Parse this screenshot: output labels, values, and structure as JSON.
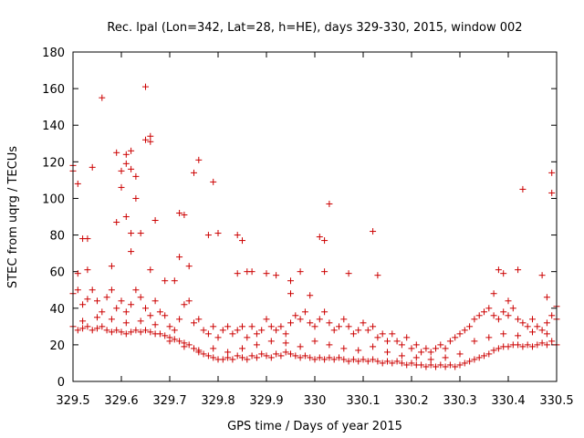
{
  "chart_data": {
    "type": "scatter",
    "title": "Rec. lpal (Lon=342, Lat=28, h=HE), days 329-330, 2015, window 002",
    "xlabel": "GPS time / Days of year 2015",
    "ylabel": "STEC from uqrg / TECUs",
    "xlim": [
      329.5,
      330.5
    ],
    "ylim": [
      0,
      180
    ],
    "grid": false,
    "marker": "plus",
    "color": "#cc0000",
    "x_ticks": [
      329.5,
      329.6,
      329.7,
      329.8,
      329.9,
      330.0,
      330.1,
      330.2,
      330.3,
      330.4,
      330.5
    ],
    "x_tick_labels": [
      "329.5",
      "329.6",
      "329.7",
      "329.8",
      "329.9",
      "330",
      "330.1",
      "330.2",
      "330.3",
      "330.4",
      "330.5"
    ],
    "y_ticks": [
      0,
      20,
      40,
      60,
      80,
      100,
      120,
      140,
      160,
      180
    ],
    "y_tick_labels": [
      "0",
      "20",
      "40",
      "60",
      "80",
      "100",
      "120",
      "140",
      "160",
      "180"
    ],
    "points": [
      [
        329.5,
        115
      ],
      [
        329.5,
        118
      ],
      [
        329.51,
        108
      ],
      [
        329.52,
        78
      ],
      [
        329.53,
        78
      ],
      [
        329.53,
        61
      ],
      [
        329.51,
        59
      ],
      [
        329.54,
        117
      ],
      [
        329.56,
        155
      ],
      [
        329.58,
        63
      ],
      [
        329.59,
        87
      ],
      [
        329.59,
        125
      ],
      [
        329.6,
        106
      ],
      [
        329.6,
        115
      ],
      [
        329.61,
        119
      ],
      [
        329.61,
        124
      ],
      [
        329.62,
        116
      ],
      [
        329.62,
        126
      ],
      [
        329.63,
        112
      ],
      [
        329.63,
        100
      ],
      [
        329.64,
        81
      ],
      [
        329.61,
        90
      ],
      [
        329.62,
        81
      ],
      [
        329.62,
        71
      ],
      [
        329.65,
        161
      ],
      [
        329.65,
        132
      ],
      [
        329.66,
        131
      ],
      [
        329.66,
        134
      ],
      [
        329.67,
        88
      ],
      [
        329.66,
        61
      ],
      [
        329.69,
        55
      ],
      [
        329.71,
        55
      ],
      [
        329.72,
        68
      ],
      [
        329.72,
        92
      ],
      [
        329.73,
        91
      ],
      [
        329.74,
        63
      ],
      [
        329.75,
        114
      ],
      [
        329.76,
        121
      ],
      [
        329.78,
        80
      ],
      [
        329.79,
        109
      ],
      [
        329.8,
        81
      ],
      [
        329.84,
        80
      ],
      [
        329.85,
        77
      ],
      [
        329.84,
        59
      ],
      [
        329.86,
        60
      ],
      [
        329.87,
        60
      ],
      [
        329.9,
        59
      ],
      [
        329.92,
        58
      ],
      [
        329.95,
        55
      ],
      [
        329.95,
        48
      ],
      [
        329.97,
        60
      ],
      [
        329.99,
        47
      ],
      [
        330.01,
        79
      ],
      [
        330.02,
        77
      ],
      [
        330.03,
        97
      ],
      [
        330.02,
        60
      ],
      [
        330.07,
        59
      ],
      [
        330.12,
        82
      ],
      [
        330.13,
        58
      ],
      [
        330.37,
        48
      ],
      [
        330.38,
        61
      ],
      [
        330.39,
        59
      ],
      [
        330.4,
        44
      ],
      [
        330.42,
        61
      ],
      [
        330.43,
        105
      ],
      [
        330.47,
        58
      ],
      [
        330.49,
        114
      ],
      [
        330.49,
        103
      ],
      [
        330.48,
        46
      ],
      [
        330.5,
        41
      ],
      [
        329.5,
        48
      ],
      [
        329.51,
        50
      ],
      [
        329.52,
        42
      ],
      [
        329.53,
        45
      ],
      [
        329.54,
        50
      ],
      [
        329.55,
        44
      ],
      [
        329.56,
        38
      ],
      [
        329.57,
        46
      ],
      [
        329.58,
        50
      ],
      [
        329.59,
        40
      ],
      [
        329.6,
        44
      ],
      [
        329.61,
        38
      ],
      [
        329.62,
        42
      ],
      [
        329.63,
        50
      ],
      [
        329.64,
        46
      ],
      [
        329.65,
        40
      ],
      [
        329.66,
        36
      ],
      [
        329.67,
        44
      ],
      [
        329.68,
        38
      ],
      [
        329.69,
        36
      ],
      [
        329.7,
        30
      ],
      [
        329.71,
        28
      ],
      [
        329.72,
        34
      ],
      [
        329.73,
        42
      ],
      [
        329.74,
        44
      ],
      [
        329.75,
        32
      ],
      [
        329.76,
        34
      ],
      [
        329.77,
        28
      ],
      [
        329.78,
        26
      ],
      [
        329.79,
        30
      ],
      [
        329.8,
        24
      ],
      [
        329.81,
        28
      ],
      [
        329.82,
        30
      ],
      [
        329.83,
        26
      ],
      [
        329.84,
        28
      ],
      [
        329.85,
        30
      ],
      [
        329.86,
        24
      ],
      [
        329.87,
        30
      ],
      [
        329.88,
        26
      ],
      [
        329.89,
        28
      ],
      [
        329.9,
        34
      ],
      [
        329.91,
        30
      ],
      [
        329.92,
        28
      ],
      [
        329.93,
        30
      ],
      [
        329.94,
        26
      ],
      [
        329.95,
        32
      ],
      [
        329.96,
        36
      ],
      [
        329.97,
        34
      ],
      [
        329.98,
        38
      ],
      [
        329.99,
        32
      ],
      [
        330.0,
        30
      ],
      [
        330.01,
        34
      ],
      [
        330.02,
        38
      ],
      [
        330.03,
        32
      ],
      [
        330.04,
        28
      ],
      [
        330.05,
        30
      ],
      [
        330.06,
        34
      ],
      [
        330.07,
        30
      ],
      [
        330.08,
        26
      ],
      [
        330.09,
        28
      ],
      [
        330.1,
        32
      ],
      [
        330.11,
        28
      ],
      [
        330.12,
        30
      ],
      [
        330.13,
        24
      ],
      [
        330.14,
        26
      ],
      [
        330.15,
        22
      ],
      [
        330.16,
        26
      ],
      [
        330.17,
        22
      ],
      [
        330.18,
        20
      ],
      [
        330.19,
        24
      ],
      [
        330.2,
        18
      ],
      [
        330.21,
        20
      ],
      [
        330.22,
        16
      ],
      [
        330.23,
        18
      ],
      [
        330.24,
        16
      ],
      [
        330.25,
        18
      ],
      [
        330.26,
        20
      ],
      [
        330.27,
        18
      ],
      [
        330.28,
        22
      ],
      [
        330.29,
        24
      ],
      [
        330.3,
        26
      ],
      [
        330.31,
        28
      ],
      [
        330.32,
        30
      ],
      [
        330.33,
        34
      ],
      [
        330.34,
        36
      ],
      [
        330.35,
        38
      ],
      [
        330.36,
        40
      ],
      [
        330.37,
        36
      ],
      [
        330.38,
        34
      ],
      [
        330.39,
        38
      ],
      [
        330.4,
        36
      ],
      [
        330.41,
        40
      ],
      [
        330.42,
        34
      ],
      [
        330.43,
        32
      ],
      [
        330.44,
        30
      ],
      [
        330.45,
        34
      ],
      [
        330.46,
        30
      ],
      [
        330.47,
        28
      ],
      [
        330.48,
        32
      ],
      [
        330.49,
        36
      ],
      [
        330.5,
        34
      ],
      [
        329.5,
        30
      ],
      [
        329.51,
        28
      ],
      [
        329.52,
        29
      ],
      [
        329.53,
        30
      ],
      [
        329.54,
        28
      ],
      [
        329.55,
        29
      ],
      [
        329.56,
        30
      ],
      [
        329.57,
        28
      ],
      [
        329.58,
        27
      ],
      [
        329.59,
        28
      ],
      [
        329.6,
        27
      ],
      [
        329.61,
        26
      ],
      [
        329.62,
        27
      ],
      [
        329.63,
        28
      ],
      [
        329.64,
        27
      ],
      [
        329.65,
        28
      ],
      [
        329.66,
        27
      ],
      [
        329.67,
        26
      ],
      [
        329.68,
        26
      ],
      [
        329.69,
        25
      ],
      [
        329.7,
        24
      ],
      [
        329.71,
        23
      ],
      [
        329.72,
        22
      ],
      [
        329.73,
        21
      ],
      [
        329.74,
        20
      ],
      [
        329.75,
        18
      ],
      [
        329.76,
        16
      ],
      [
        329.77,
        15
      ],
      [
        329.78,
        14
      ],
      [
        329.79,
        13
      ],
      [
        329.8,
        12
      ],
      [
        329.81,
        12
      ],
      [
        329.82,
        13
      ],
      [
        329.83,
        12
      ],
      [
        329.84,
        14
      ],
      [
        329.85,
        13
      ],
      [
        329.86,
        12
      ],
      [
        329.87,
        14
      ],
      [
        329.88,
        13
      ],
      [
        329.89,
        15
      ],
      [
        329.9,
        14
      ],
      [
        329.91,
        13
      ],
      [
        329.92,
        15
      ],
      [
        329.93,
        14
      ],
      [
        329.94,
        16
      ],
      [
        329.95,
        15
      ],
      [
        329.96,
        14
      ],
      [
        329.97,
        13
      ],
      [
        329.98,
        14
      ],
      [
        329.99,
        13
      ],
      [
        330.0,
        12
      ],
      [
        330.01,
        13
      ],
      [
        330.02,
        12
      ],
      [
        330.03,
        13
      ],
      [
        330.04,
        12
      ],
      [
        330.05,
        13
      ],
      [
        330.06,
        12
      ],
      [
        330.07,
        11
      ],
      [
        330.08,
        12
      ],
      [
        330.09,
        11
      ],
      [
        330.1,
        12
      ],
      [
        330.11,
        11
      ],
      [
        330.12,
        12
      ],
      [
        330.13,
        11
      ],
      [
        330.14,
        10
      ],
      [
        330.15,
        11
      ],
      [
        330.16,
        10
      ],
      [
        330.17,
        11
      ],
      [
        330.18,
        10
      ],
      [
        330.19,
        9
      ],
      [
        330.2,
        10
      ],
      [
        330.21,
        9
      ],
      [
        330.22,
        9
      ],
      [
        330.23,
        8
      ],
      [
        330.24,
        9
      ],
      [
        330.25,
        8
      ],
      [
        330.26,
        9
      ],
      [
        330.27,
        8
      ],
      [
        330.28,
        9
      ],
      [
        330.29,
        8
      ],
      [
        330.3,
        9
      ],
      [
        330.31,
        10
      ],
      [
        330.32,
        11
      ],
      [
        330.33,
        12
      ],
      [
        330.34,
        13
      ],
      [
        330.35,
        14
      ],
      [
        330.36,
        15
      ],
      [
        330.37,
        17
      ],
      [
        330.38,
        18
      ],
      [
        330.39,
        19
      ],
      [
        330.4,
        19
      ],
      [
        330.41,
        20
      ],
      [
        330.42,
        20
      ],
      [
        330.43,
        19
      ],
      [
        330.44,
        20
      ],
      [
        330.45,
        19
      ],
      [
        330.46,
        20
      ],
      [
        330.47,
        21
      ],
      [
        330.48,
        20
      ],
      [
        330.49,
        22
      ],
      [
        330.5,
        20
      ],
      [
        329.52,
        33
      ],
      [
        329.55,
        35
      ],
      [
        329.58,
        34
      ],
      [
        329.61,
        32
      ],
      [
        329.64,
        33
      ],
      [
        329.67,
        31
      ],
      [
        329.7,
        22
      ],
      [
        329.73,
        19
      ],
      [
        329.76,
        17
      ],
      [
        329.79,
        18
      ],
      [
        329.82,
        16
      ],
      [
        329.85,
        18
      ],
      [
        329.88,
        20
      ],
      [
        329.91,
        22
      ],
      [
        329.94,
        21
      ],
      [
        329.97,
        19
      ],
      [
        330.0,
        22
      ],
      [
        330.03,
        20
      ],
      [
        330.06,
        18
      ],
      [
        330.09,
        17
      ],
      [
        330.12,
        19
      ],
      [
        330.15,
        16
      ],
      [
        330.18,
        14
      ],
      [
        330.21,
        13
      ],
      [
        330.24,
        12
      ],
      [
        330.27,
        13
      ],
      [
        330.3,
        15
      ],
      [
        330.33,
        22
      ],
      [
        330.36,
        24
      ],
      [
        330.39,
        26
      ],
      [
        330.42,
        25
      ],
      [
        330.45,
        27
      ],
      [
        330.48,
        26
      ]
    ]
  }
}
